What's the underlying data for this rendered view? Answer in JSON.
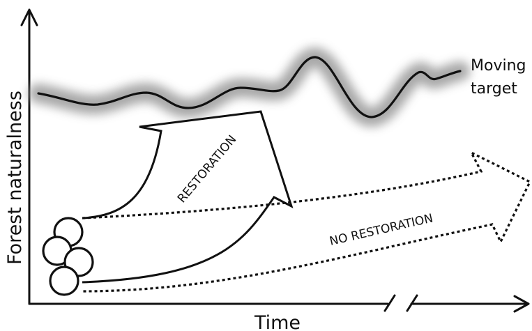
{
  "axes": {
    "y_label": "Forest naturalness",
    "x_label": "Time"
  },
  "target": {
    "label_line1": "Moving",
    "label_line2": "target"
  },
  "paths": {
    "restoration_label": "RESTORATION",
    "no_restoration_label": "NO RESTORATION"
  },
  "colors": {
    "ink": "#111111",
    "halo": "#9a9a9a",
    "background": "#ffffff"
  }
}
